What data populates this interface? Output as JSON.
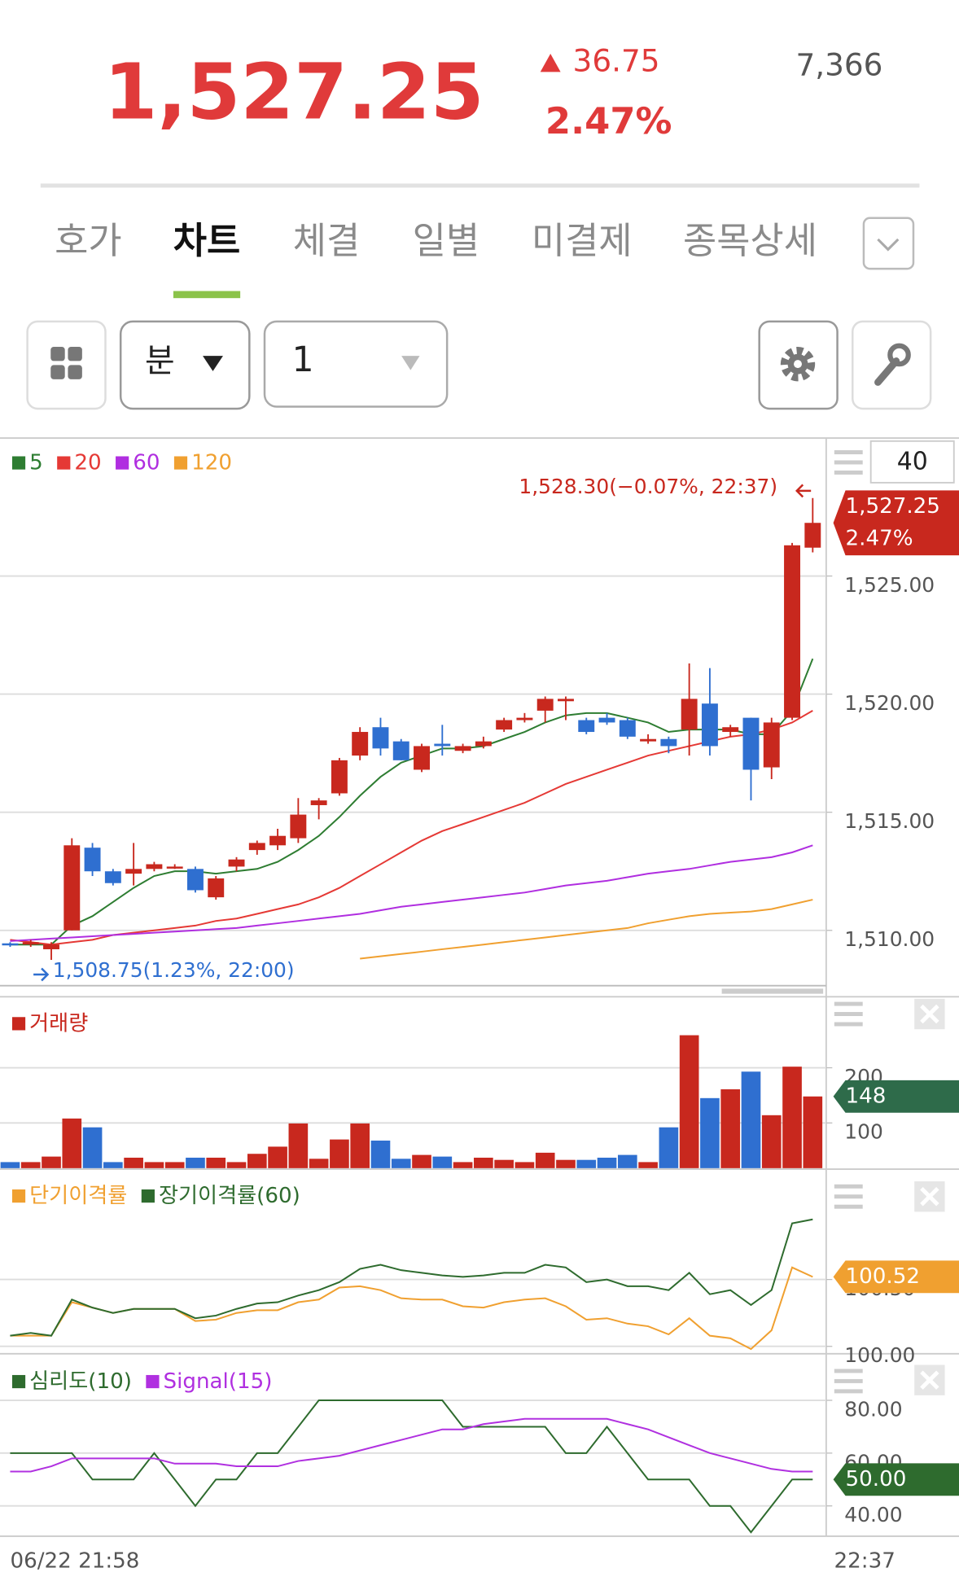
{
  "header": {
    "price": "1,527.25",
    "change": "36.75",
    "change_pct": "2.47%",
    "volume": "7,366"
  },
  "tabs": [
    "호가",
    "차트",
    "체결",
    "일별",
    "미결제",
    "종목상세"
  ],
  "toolbar": {
    "period": "분",
    "interval": "1",
    "count": "40"
  },
  "time_axis": [
    "06/22 21:58",
    "22:37"
  ],
  "chart_data": [
    {
      "type": "candlestick",
      "up_color": "#c8281e",
      "down_color": "#2f6fd0",
      "open": [
        1509.45,
        1509.4,
        1509.2,
        1510.0,
        1513.5,
        1512.5,
        1512.4,
        1512.6,
        1512.7,
        1512.6,
        1511.4,
        1512.7,
        1513.4,
        1513.6,
        1513.9,
        1515.3,
        1515.8,
        1517.4,
        1518.6,
        1518.0,
        1516.8,
        1517.9,
        1517.6,
        1517.8,
        1518.5,
        1518.9,
        1519.3,
        1519.7,
        1518.9,
        1519.0,
        1518.9,
        1518.0,
        1518.1,
        1518.5,
        1519.6,
        1518.4,
        1519.0,
        1516.9,
        1519.0,
        1526.2
      ],
      "high": [
        1509.5,
        1509.6,
        1509.5,
        1513.9,
        1513.7,
        1512.6,
        1513.7,
        1512.9,
        1512.8,
        1512.7,
        1512.3,
        1513.1,
        1513.8,
        1514.3,
        1515.6,
        1515.6,
        1517.3,
        1518.6,
        1519.0,
        1518.1,
        1517.9,
        1518.7,
        1517.9,
        1518.2,
        1519.0,
        1519.2,
        1519.9,
        1519.9,
        1519.0,
        1519.2,
        1519.0,
        1518.3,
        1518.2,
        1521.3,
        1521.1,
        1518.7,
        1519.0,
        1519.0,
        1526.4,
        1528.3
      ],
      "low": [
        1509.3,
        1509.3,
        1508.75,
        1510.0,
        1512.3,
        1511.9,
        1511.9,
        1512.5,
        1512.6,
        1511.6,
        1511.3,
        1512.5,
        1513.2,
        1513.4,
        1513.7,
        1514.7,
        1515.7,
        1517.2,
        1517.4,
        1517.2,
        1516.7,
        1517.4,
        1517.5,
        1517.7,
        1518.4,
        1518.8,
        1518.8,
        1518.9,
        1518.3,
        1518.7,
        1518.1,
        1517.9,
        1517.5,
        1517.4,
        1517.4,
        1518.2,
        1515.5,
        1516.4,
        1518.9,
        1526.0
      ],
      "close": [
        1509.4,
        1509.5,
        1509.4,
        1513.6,
        1512.5,
        1512.0,
        1512.6,
        1512.8,
        1512.7,
        1511.7,
        1512.2,
        1513.0,
        1513.7,
        1514.0,
        1514.9,
        1515.5,
        1517.2,
        1518.4,
        1517.7,
        1517.2,
        1517.8,
        1517.8,
        1517.8,
        1518.0,
        1518.9,
        1519.0,
        1519.8,
        1519.8,
        1518.4,
        1518.8,
        1518.2,
        1518.1,
        1517.8,
        1519.8,
        1517.8,
        1518.6,
        1516.8,
        1518.8,
        1526.3,
        1527.25
      ],
      "series": [
        {
          "name": "5",
          "color": "#2e7d32",
          "values": [
            1509.4,
            1509.4,
            1509.4,
            1510.2,
            1510.6,
            1511.2,
            1511.8,
            1512.3,
            1512.5,
            1512.5,
            1512.4,
            1512.5,
            1512.6,
            1512.9,
            1513.4,
            1514.0,
            1514.8,
            1515.7,
            1516.5,
            1517.1,
            1517.4,
            1517.7,
            1517.7,
            1517.8,
            1518.1,
            1518.4,
            1518.8,
            1519.1,
            1519.2,
            1519.2,
            1519.0,
            1518.8,
            1518.4,
            1518.5,
            1518.5,
            1518.5,
            1518.3,
            1518.3,
            1519.3,
            1521.5
          ]
        },
        {
          "name": "20",
          "color": "#e53935",
          "values": [
            1509.6,
            1509.5,
            1509.4,
            1509.5,
            1509.6,
            1509.8,
            1509.9,
            1510.0,
            1510.1,
            1510.2,
            1510.4,
            1510.5,
            1510.7,
            1510.9,
            1511.1,
            1511.4,
            1511.8,
            1512.3,
            1512.8,
            1513.3,
            1513.8,
            1514.2,
            1514.5,
            1514.8,
            1515.1,
            1515.4,
            1515.8,
            1516.2,
            1516.5,
            1516.8,
            1517.1,
            1517.4,
            1517.6,
            1517.8,
            1518.0,
            1518.2,
            1518.3,
            1518.5,
            1518.8,
            1519.3
          ]
        },
        {
          "name": "60",
          "color": "#b02ee0",
          "values": [
            1509.55,
            1509.6,
            1509.65,
            1509.7,
            1509.75,
            1509.8,
            1509.85,
            1509.9,
            1509.95,
            1510.0,
            1510.05,
            1510.1,
            1510.2,
            1510.3,
            1510.4,
            1510.5,
            1510.6,
            1510.7,
            1510.85,
            1511.0,
            1511.1,
            1511.2,
            1511.3,
            1511.4,
            1511.5,
            1511.6,
            1511.75,
            1511.9,
            1512.0,
            1512.1,
            1512.25,
            1512.4,
            1512.5,
            1512.6,
            1512.75,
            1512.9,
            1513.0,
            1513.1,
            1513.3,
            1513.6
          ]
        },
        {
          "name": "120",
          "color": "#f0a030",
          "values": [
            null,
            null,
            null,
            null,
            null,
            null,
            null,
            null,
            null,
            null,
            null,
            null,
            null,
            null,
            null,
            null,
            null,
            1508.8,
            1508.9,
            1509.0,
            1509.1,
            1509.2,
            1509.3,
            1509.4,
            1509.5,
            1509.6,
            1509.7,
            1509.8,
            1509.9,
            1510.0,
            1510.1,
            1510.3,
            1510.45,
            1510.6,
            1510.7,
            1510.75,
            1510.8,
            1510.9,
            1511.1,
            1511.3
          ]
        }
      ],
      "ylim": [
        1507.66,
        1530.84
      ],
      "yticks": [
        {
          "value": 1510,
          "label": "1,510.00"
        },
        {
          "value": 1515,
          "label": "1,515.00"
        },
        {
          "value": 1520,
          "label": "1,520.00"
        },
        {
          "value": 1525,
          "label": "1,525.00"
        }
      ],
      "grid": true,
      "high_label": "1,528.30(−0.07%, 22:37)",
      "low_label": "1,508.75(1.23%, 22:00)",
      "tag": {
        "lines": [
          "1,527.25",
          "2.47%"
        ],
        "color": "#c8281e"
      }
    },
    {
      "type": "bar",
      "down_color": "#2f6fd0",
      "series": [
        {
          "name": "거래량",
          "color": "#c8281e",
          "values": [
            29,
            29,
            39,
            108,
            92,
            29,
            37,
            29,
            29,
            37,
            37,
            29,
            44,
            57,
            99,
            35,
            70,
            99,
            68,
            35,
            42,
            39,
            29,
            37,
            33,
            29,
            46,
            33,
            33,
            37,
            42,
            29,
            92,
            259,
            145,
            161,
            193,
            114,
            202,
            148
          ]
        }
      ],
      "ylim": [
        18,
        325
      ],
      "yticks": [
        100,
        200
      ],
      "grid": true,
      "tag": {
        "lines": [
          "148"
        ],
        "color": "#2e6b4a"
      }
    },
    {
      "type": "line",
      "series": [
        {
          "name": "단기이격률",
          "color": "#f0a030",
          "values": [
            100.08,
            100.08,
            100.08,
            100.33,
            100.29,
            100.25,
            100.28,
            100.28,
            100.28,
            100.19,
            100.2,
            100.25,
            100.27,
            100.27,
            100.33,
            100.35,
            100.44,
            100.45,
            100.42,
            100.36,
            100.35,
            100.35,
            100.3,
            100.29,
            100.33,
            100.35,
            100.36,
            100.3,
            100.2,
            100.21,
            100.17,
            100.15,
            100.09,
            100.21,
            100.08,
            100.06,
            99.98,
            100.12,
            100.59,
            100.52
          ]
        },
        {
          "name": "장기이격률(60)",
          "color": "#2e6b2e",
          "values": [
            100.08,
            100.1,
            100.08,
            100.35,
            100.29,
            100.25,
            100.28,
            100.28,
            100.28,
            100.21,
            100.23,
            100.28,
            100.32,
            100.33,
            100.38,
            100.42,
            100.48,
            100.58,
            100.61,
            100.57,
            100.55,
            100.53,
            100.52,
            100.53,
            100.55,
            100.55,
            100.61,
            100.59,
            100.48,
            100.5,
            100.45,
            100.45,
            100.42,
            100.55,
            100.39,
            100.42,
            100.31,
            100.42,
            100.92,
            100.95
          ]
        }
      ],
      "ylim": [
        99.96,
        101.31
      ],
      "yticks": [
        {
          "value": 100,
          "label": "100.00"
        },
        {
          "value": 100.5,
          "label": "100.50"
        }
      ],
      "grid": true,
      "tag": {
        "lines": [
          "100.52"
        ],
        "color": "#f0a030"
      }
    },
    {
      "type": "line",
      "series": [
        {
          "name": "심리도(10)",
          "color": "#2e6b2e",
          "values": [
            60,
            60,
            60,
            60,
            50,
            50,
            50,
            60,
            50,
            40,
            50,
            50,
            60,
            60,
            70,
            80,
            80,
            80,
            80,
            80,
            80,
            80,
            70,
            70,
            70,
            70,
            70,
            60,
            60,
            70,
            60,
            50,
            50,
            50,
            40,
            40,
            30,
            40,
            50,
            50
          ]
        },
        {
          "name": "Signal(15)",
          "color": "#b030e0",
          "values": [
            53,
            53,
            55,
            58,
            58,
            58,
            58,
            58,
            56,
            56,
            56,
            55,
            55,
            55,
            57,
            58,
            59,
            61,
            63,
            65,
            67,
            69,
            69,
            71,
            72,
            73,
            73,
            73,
            73,
            73,
            71,
            69,
            66,
            63,
            60,
            58,
            56,
            54,
            53,
            53
          ]
        }
      ],
      "ylim": [
        28.5,
        96.5
      ],
      "yticks": [
        {
          "value": 40,
          "label": "40.00"
        },
        {
          "value": 60,
          "label": "60.00"
        },
        {
          "value": 80,
          "label": "80.00"
        }
      ],
      "grid": true,
      "tag": {
        "lines": [
          "50.00"
        ],
        "color": "#2e6b2e"
      }
    }
  ]
}
